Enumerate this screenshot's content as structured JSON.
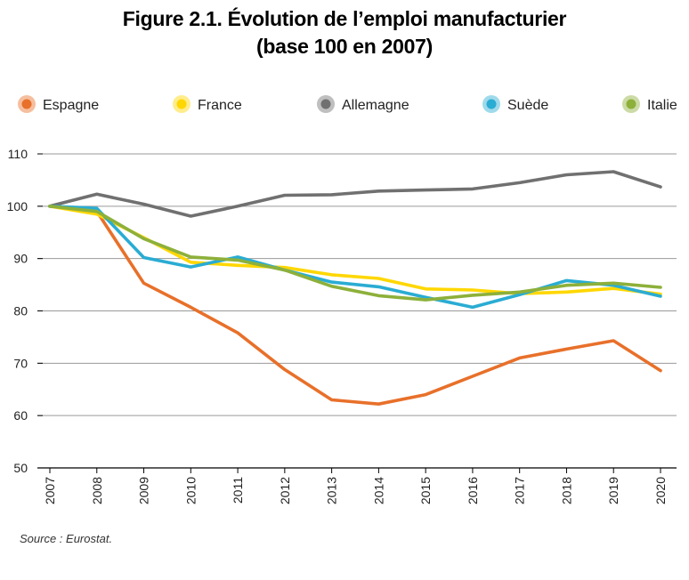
{
  "title_line1": "Figure 2.1. Évolution de l’emploi manufacturier",
  "title_line2": "(base 100 en 2007)",
  "source": "Source : Eurostat.",
  "chart_data": {
    "type": "line",
    "x": [
      "2007",
      "2008",
      "2009",
      "2010",
      "2011",
      "2012",
      "2013",
      "2014",
      "2015",
      "2016",
      "2017",
      "2018",
      "2019",
      "2020"
    ],
    "ylim": [
      50,
      110
    ],
    "yticks": [
      50,
      60,
      70,
      80,
      90,
      100,
      110
    ],
    "grid": true,
    "legend_position": "top",
    "series": [
      {
        "name": "Espagne",
        "color": "#E8702A",
        "values": [
          100,
          99,
          85.3,
          80.7,
          75.8,
          68.8,
          63.0,
          62.2,
          64.0,
          67.5,
          71.0,
          72.7,
          74.3,
          68.6
        ]
      },
      {
        "name": "France",
        "color": "#FFD700",
        "values": [
          100,
          98.5,
          94.0,
          89.3,
          88.7,
          88.3,
          86.9,
          86.2,
          84.2,
          84.0,
          83.3,
          83.6,
          84.3,
          83.2
        ]
      },
      {
        "name": "Allemagne",
        "color": "#707070",
        "values": [
          100,
          102.3,
          100.4,
          98.1,
          100.0,
          102.1,
          102.2,
          102.9,
          103.1,
          103.3,
          104.5,
          106.0,
          106.6,
          103.7
        ]
      },
      {
        "name": "Suède",
        "color": "#2AACD3",
        "values": [
          100,
          99.6,
          90.2,
          88.4,
          90.3,
          87.8,
          85.5,
          84.6,
          82.6,
          80.7,
          83.1,
          85.8,
          84.9,
          82.8
        ]
      },
      {
        "name": "Italie",
        "color": "#8DB03A",
        "values": [
          100,
          99.0,
          93.8,
          90.3,
          89.7,
          87.8,
          84.7,
          82.9,
          82.1,
          83.0,
          83.6,
          84.9,
          85.3,
          84.5
        ]
      }
    ]
  }
}
